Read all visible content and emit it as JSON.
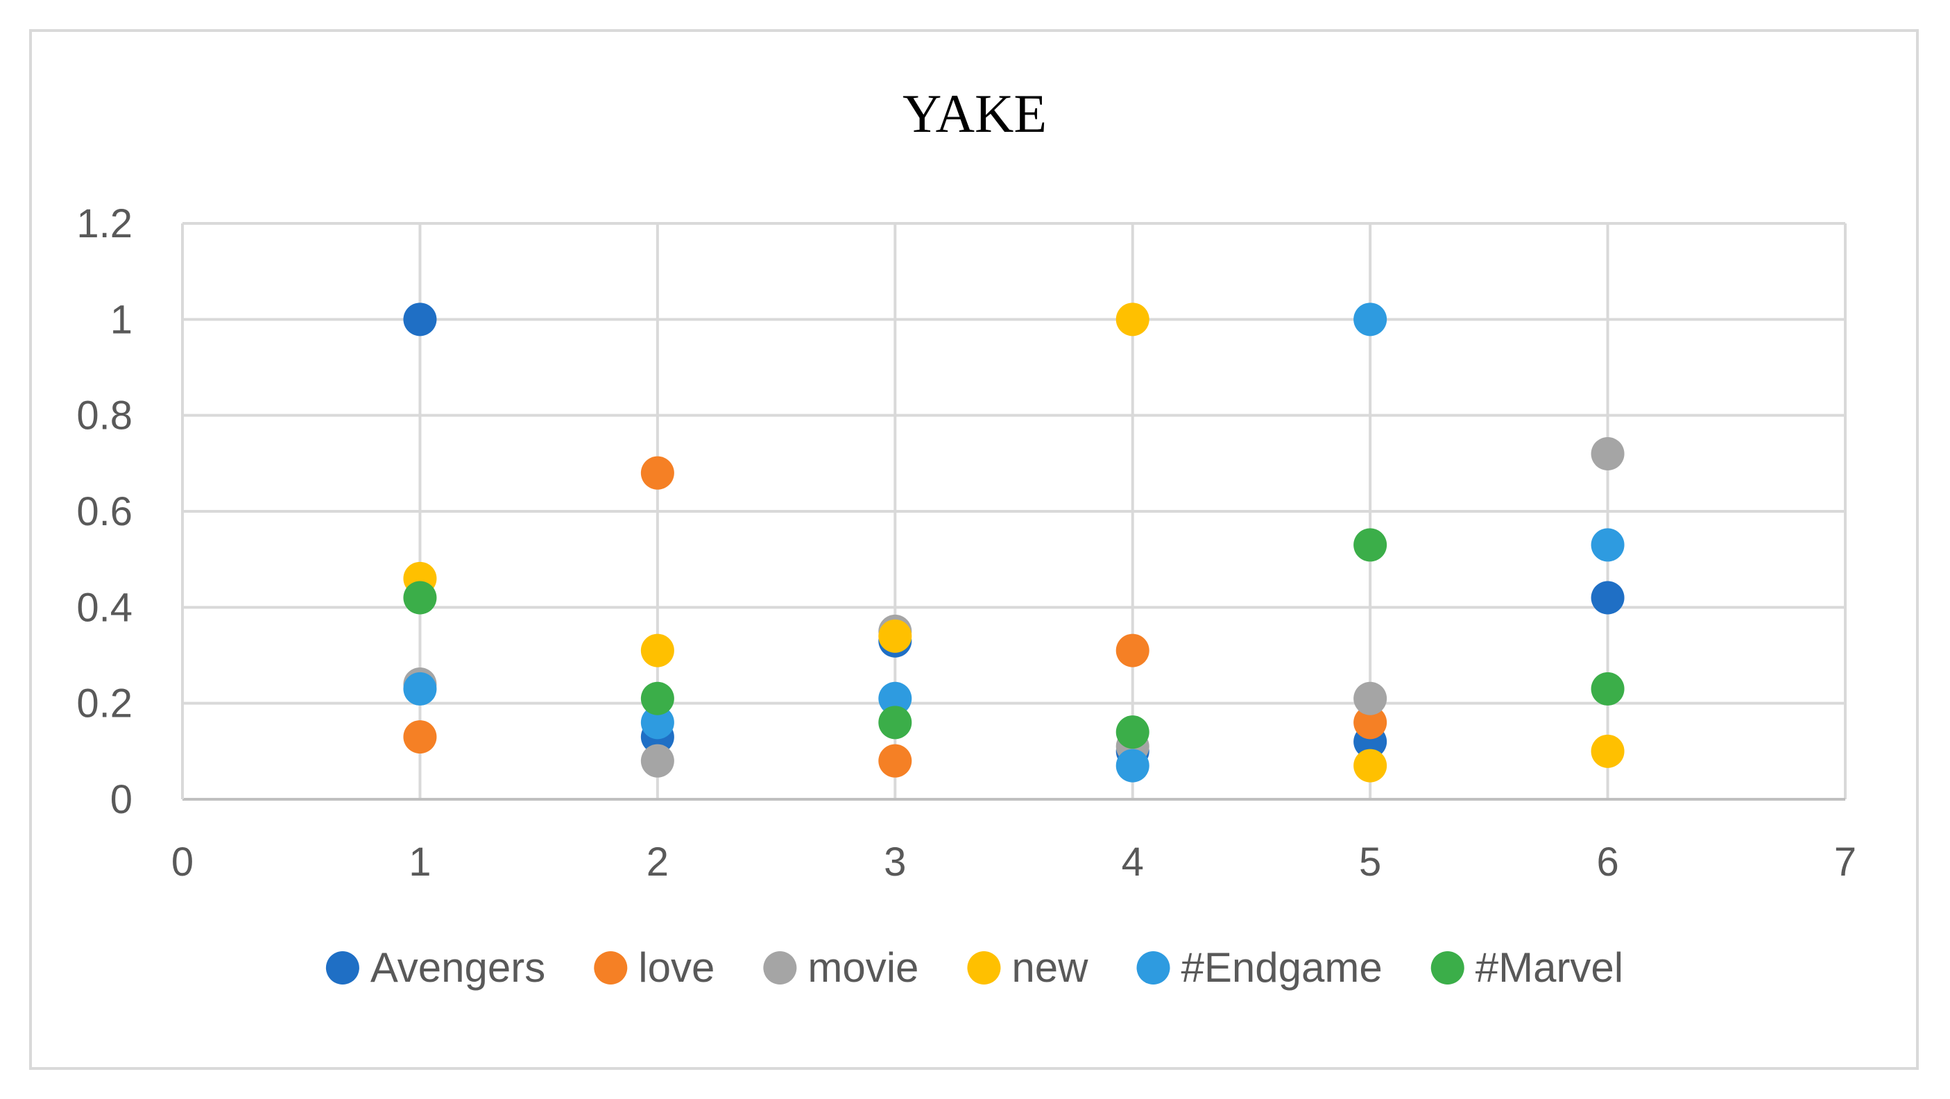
{
  "chart_data": {
    "type": "scatter",
    "title": "YAKE",
    "xlabel": "",
    "ylabel": "",
    "xlim": [
      0,
      7
    ],
    "ylim": [
      0,
      1.2
    ],
    "xticks": [
      "0",
      "1",
      "2",
      "3",
      "4",
      "5",
      "6",
      "7"
    ],
    "yticks": [
      "0",
      "0.2",
      "0.4",
      "0.6",
      "0.8",
      "1",
      "1.2"
    ],
    "grid": true,
    "legend_position": "bottom",
    "series": [
      {
        "name": "Avengers",
        "color": "#1f6fc5",
        "x": [
          1,
          2,
          3,
          4,
          5,
          6
        ],
        "y": [
          1.0,
          0.13,
          0.33,
          0.1,
          0.12,
          0.42
        ]
      },
      {
        "name": "love",
        "color": "#f58025",
        "x": [
          1,
          2,
          3,
          4,
          5
        ],
        "y": [
          0.13,
          0.68,
          0.08,
          0.31,
          0.16
        ]
      },
      {
        "name": "movie",
        "color": "#a5a5a5",
        "x": [
          1,
          2,
          3,
          4,
          5,
          6
        ],
        "y": [
          0.24,
          0.08,
          0.35,
          0.11,
          0.21,
          0.72
        ]
      },
      {
        "name": "new",
        "color": "#ffc000",
        "x": [
          1,
          2,
          3,
          4,
          5,
          6
        ],
        "y": [
          0.46,
          0.31,
          0.34,
          1.0,
          0.07,
          0.1
        ]
      },
      {
        "name": "#Endgame",
        "color": "#2e9be0",
        "x": [
          1,
          2,
          3,
          4,
          5,
          6
        ],
        "y": [
          0.23,
          0.16,
          0.21,
          0.07,
          1.0,
          0.53
        ]
      },
      {
        "name": "#Marvel",
        "color": "#3bae49",
        "x": [
          1,
          2,
          3,
          4,
          5,
          6
        ],
        "y": [
          0.42,
          0.21,
          0.16,
          0.14,
          0.53,
          0.23
        ]
      }
    ]
  }
}
